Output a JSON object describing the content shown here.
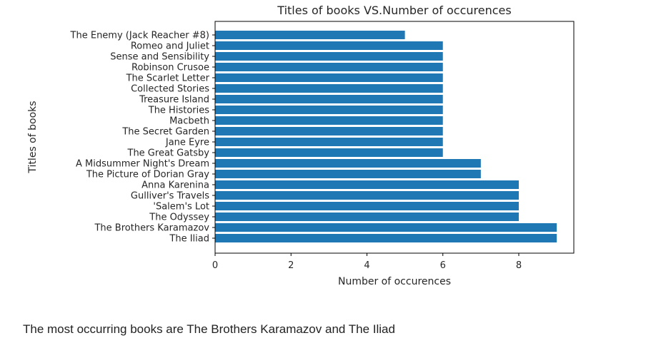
{
  "chart_data": {
    "type": "bar",
    "orientation": "horizontal",
    "title": "Titles of books VS.Number of occurences",
    "xlabel": "Number of occurences",
    "ylabel": "Titles of books",
    "xlim": [
      0,
      9.45
    ],
    "xticks": [
      0,
      2,
      4,
      6,
      8
    ],
    "grid": false,
    "bar_color": "#1f77b4",
    "categories": [
      "The Iliad",
      "The Brothers Karamazov",
      "The Odyssey",
      "'Salem's Lot",
      "Gulliver's Travels",
      "Anna Karenina",
      "The Picture of Dorian Gray",
      "A Midsummer Night's Dream",
      "The Great Gatsby",
      "Jane Eyre",
      "The Secret Garden",
      "Macbeth",
      "The Histories",
      "Treasure Island",
      "Collected Stories",
      "The Scarlet Letter",
      "Robinson Crusoe",
      "Sense and Sensibility",
      "Romeo and Juliet",
      "The Enemy (Jack Reacher  #8)"
    ],
    "values": [
      9,
      9,
      8,
      8,
      8,
      8,
      7,
      7,
      6,
      6,
      6,
      6,
      6,
      6,
      6,
      6,
      6,
      6,
      6,
      5
    ]
  },
  "caption": "The most occurring books are The Brothers Karamazov and The Iliad"
}
